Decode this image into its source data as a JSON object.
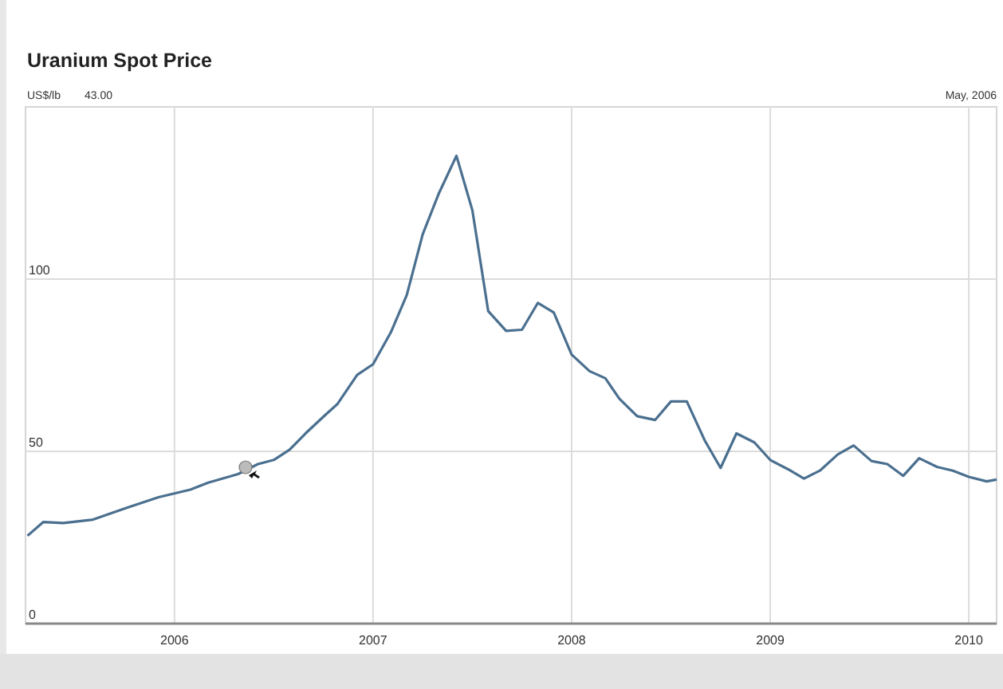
{
  "chart_data": {
    "type": "line",
    "title": "Uranium Spot Price",
    "ylabel": "US$/lb",
    "annotations": [
      "43.00",
      "May, 2006"
    ],
    "x": [
      2005.26,
      2005.34,
      2005.44,
      2005.59,
      2005.76,
      2005.92,
      2006.08,
      2006.17,
      2006.32,
      2006.42,
      2006.5,
      2006.58,
      2006.66,
      2006.76,
      2006.82,
      2006.92,
      2007.0,
      2007.09,
      2007.17,
      2007.25,
      2007.33,
      2007.42,
      2007.5,
      2007.58,
      2007.67,
      2007.75,
      2007.83,
      2007.91,
      2008.0,
      2008.09,
      2008.17,
      2008.24,
      2008.33,
      2008.42,
      2008.5,
      2008.58,
      2008.67,
      2008.75,
      2008.83,
      2008.92,
      2009.0,
      2009.09,
      2009.17,
      2009.25,
      2009.34,
      2009.42,
      2009.51,
      2009.59,
      2009.67,
      2009.75,
      2009.84,
      2009.92,
      2010.0,
      2010.09,
      2010.14
    ],
    "series": [
      {
        "color": "#4a6f8f",
        "values": [
          25.5,
          29.5,
          29.2,
          30.2,
          33.6,
          36.7,
          38.9,
          40.9,
          43.4,
          46.3,
          47.5,
          50.5,
          55.2,
          60.6,
          63.7,
          72.2,
          75.3,
          84.6,
          95.4,
          113,
          124.7,
          135.8,
          120,
          90.7,
          85,
          85.3,
          93.1,
          90.3,
          78.1,
          73.3,
          71.2,
          65.3,
          60.2,
          59.1,
          64.5,
          64.5,
          53.2,
          45.2,
          55.2,
          52.6,
          47.5,
          44.8,
          42.1,
          44.4,
          49.1,
          51.7,
          47.2,
          46.3,
          42.9,
          48,
          45.5,
          44.4,
          42.6,
          41.3,
          41.8
        ]
      }
    ],
    "xlim": [
      2005.25,
      2010.14
    ],
    "xticks": [
      2006,
      2007,
      2008,
      2009,
      2010
    ],
    "ylim": [
      0,
      150
    ],
    "yticks": [
      0,
      50,
      100
    ],
    "grid": true,
    "marker": "none",
    "line_style": "solid"
  }
}
